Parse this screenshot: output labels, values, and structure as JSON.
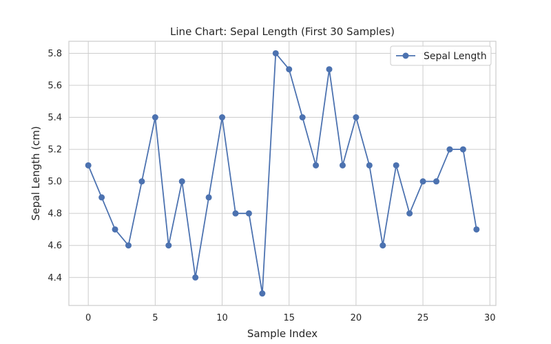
{
  "chart_data": {
    "type": "line",
    "title": "Line Chart: Sepal Length (First 30 Samples)",
    "xlabel": "Sample Index",
    "ylabel": "Sepal Length (cm)",
    "xlim": [
      -1.45,
      30.45
    ],
    "ylim": [
      4.225,
      5.875
    ],
    "xticks": [
      0,
      5,
      10,
      15,
      20,
      25,
      30
    ],
    "yticks": [
      4.4,
      4.6,
      4.8,
      5.0,
      5.2,
      5.4,
      5.6,
      5.8
    ],
    "grid": true,
    "legend_position": "top-right",
    "series": [
      {
        "name": "Sepal Length",
        "color": "#4c72b0",
        "marker": "circle",
        "x": [
          0,
          1,
          2,
          3,
          4,
          5,
          6,
          7,
          8,
          9,
          10,
          11,
          12,
          13,
          14,
          15,
          16,
          17,
          18,
          19,
          20,
          21,
          22,
          23,
          24,
          25,
          26,
          27,
          28,
          29
        ],
        "values": [
          5.1,
          4.9,
          4.7,
          4.6,
          5.0,
          5.4,
          4.6,
          5.0,
          4.4,
          4.9,
          5.4,
          4.8,
          4.8,
          4.3,
          5.8,
          5.7,
          5.4,
          5.1,
          5.7,
          5.1,
          5.4,
          5.1,
          4.6,
          5.1,
          4.8,
          5.0,
          5.0,
          5.2,
          5.2,
          4.7
        ]
      }
    ]
  }
}
